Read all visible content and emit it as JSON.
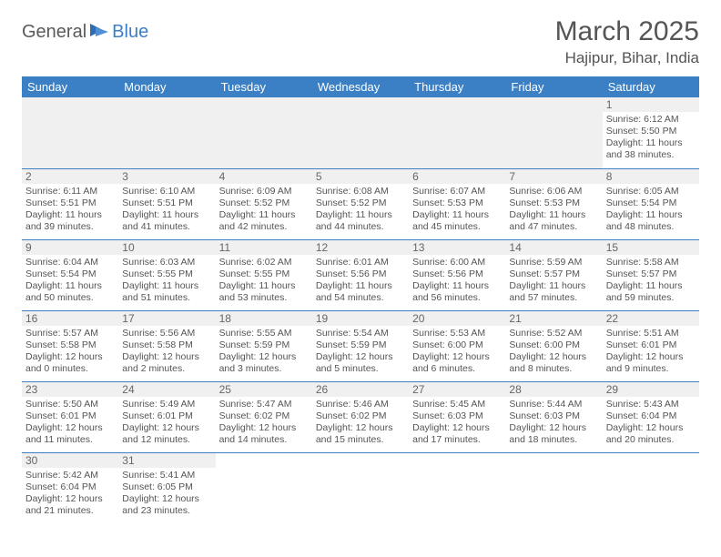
{
  "logo": {
    "general": "General",
    "blue": "Blue"
  },
  "title": "March 2025",
  "location": "Hajipur, Bihar, India",
  "colors": {
    "header_bg": "#3b7fc4",
    "header_fg": "#ffffff",
    "grid_line": "#3b7fc4",
    "daynum_bg": "#f0f0f0",
    "text": "#555555"
  },
  "weekdays": [
    "Sunday",
    "Monday",
    "Tuesday",
    "Wednesday",
    "Thursday",
    "Friday",
    "Saturday"
  ],
  "days": {
    "1": {
      "sunrise": "Sunrise: 6:12 AM",
      "sunset": "Sunset: 5:50 PM",
      "daylight": "Daylight: 11 hours and 38 minutes."
    },
    "2": {
      "sunrise": "Sunrise: 6:11 AM",
      "sunset": "Sunset: 5:51 PM",
      "daylight": "Daylight: 11 hours and 39 minutes."
    },
    "3": {
      "sunrise": "Sunrise: 6:10 AM",
      "sunset": "Sunset: 5:51 PM",
      "daylight": "Daylight: 11 hours and 41 minutes."
    },
    "4": {
      "sunrise": "Sunrise: 6:09 AM",
      "sunset": "Sunset: 5:52 PM",
      "daylight": "Daylight: 11 hours and 42 minutes."
    },
    "5": {
      "sunrise": "Sunrise: 6:08 AM",
      "sunset": "Sunset: 5:52 PM",
      "daylight": "Daylight: 11 hours and 44 minutes."
    },
    "6": {
      "sunrise": "Sunrise: 6:07 AM",
      "sunset": "Sunset: 5:53 PM",
      "daylight": "Daylight: 11 hours and 45 minutes."
    },
    "7": {
      "sunrise": "Sunrise: 6:06 AM",
      "sunset": "Sunset: 5:53 PM",
      "daylight": "Daylight: 11 hours and 47 minutes."
    },
    "8": {
      "sunrise": "Sunrise: 6:05 AM",
      "sunset": "Sunset: 5:54 PM",
      "daylight": "Daylight: 11 hours and 48 minutes."
    },
    "9": {
      "sunrise": "Sunrise: 6:04 AM",
      "sunset": "Sunset: 5:54 PM",
      "daylight": "Daylight: 11 hours and 50 minutes."
    },
    "10": {
      "sunrise": "Sunrise: 6:03 AM",
      "sunset": "Sunset: 5:55 PM",
      "daylight": "Daylight: 11 hours and 51 minutes."
    },
    "11": {
      "sunrise": "Sunrise: 6:02 AM",
      "sunset": "Sunset: 5:55 PM",
      "daylight": "Daylight: 11 hours and 53 minutes."
    },
    "12": {
      "sunrise": "Sunrise: 6:01 AM",
      "sunset": "Sunset: 5:56 PM",
      "daylight": "Daylight: 11 hours and 54 minutes."
    },
    "13": {
      "sunrise": "Sunrise: 6:00 AM",
      "sunset": "Sunset: 5:56 PM",
      "daylight": "Daylight: 11 hours and 56 minutes."
    },
    "14": {
      "sunrise": "Sunrise: 5:59 AM",
      "sunset": "Sunset: 5:57 PM",
      "daylight": "Daylight: 11 hours and 57 minutes."
    },
    "15": {
      "sunrise": "Sunrise: 5:58 AM",
      "sunset": "Sunset: 5:57 PM",
      "daylight": "Daylight: 11 hours and 59 minutes."
    },
    "16": {
      "sunrise": "Sunrise: 5:57 AM",
      "sunset": "Sunset: 5:58 PM",
      "daylight": "Daylight: 12 hours and 0 minutes."
    },
    "17": {
      "sunrise": "Sunrise: 5:56 AM",
      "sunset": "Sunset: 5:58 PM",
      "daylight": "Daylight: 12 hours and 2 minutes."
    },
    "18": {
      "sunrise": "Sunrise: 5:55 AM",
      "sunset": "Sunset: 5:59 PM",
      "daylight": "Daylight: 12 hours and 3 minutes."
    },
    "19": {
      "sunrise": "Sunrise: 5:54 AM",
      "sunset": "Sunset: 5:59 PM",
      "daylight": "Daylight: 12 hours and 5 minutes."
    },
    "20": {
      "sunrise": "Sunrise: 5:53 AM",
      "sunset": "Sunset: 6:00 PM",
      "daylight": "Daylight: 12 hours and 6 minutes."
    },
    "21": {
      "sunrise": "Sunrise: 5:52 AM",
      "sunset": "Sunset: 6:00 PM",
      "daylight": "Daylight: 12 hours and 8 minutes."
    },
    "22": {
      "sunrise": "Sunrise: 5:51 AM",
      "sunset": "Sunset: 6:01 PM",
      "daylight": "Daylight: 12 hours and 9 minutes."
    },
    "23": {
      "sunrise": "Sunrise: 5:50 AM",
      "sunset": "Sunset: 6:01 PM",
      "daylight": "Daylight: 12 hours and 11 minutes."
    },
    "24": {
      "sunrise": "Sunrise: 5:49 AM",
      "sunset": "Sunset: 6:01 PM",
      "daylight": "Daylight: 12 hours and 12 minutes."
    },
    "25": {
      "sunrise": "Sunrise: 5:47 AM",
      "sunset": "Sunset: 6:02 PM",
      "daylight": "Daylight: 12 hours and 14 minutes."
    },
    "26": {
      "sunrise": "Sunrise: 5:46 AM",
      "sunset": "Sunset: 6:02 PM",
      "daylight": "Daylight: 12 hours and 15 minutes."
    },
    "27": {
      "sunrise": "Sunrise: 5:45 AM",
      "sunset": "Sunset: 6:03 PM",
      "daylight": "Daylight: 12 hours and 17 minutes."
    },
    "28": {
      "sunrise": "Sunrise: 5:44 AM",
      "sunset": "Sunset: 6:03 PM",
      "daylight": "Daylight: 12 hours and 18 minutes."
    },
    "29": {
      "sunrise": "Sunrise: 5:43 AM",
      "sunset": "Sunset: 6:04 PM",
      "daylight": "Daylight: 12 hours and 20 minutes."
    },
    "30": {
      "sunrise": "Sunrise: 5:42 AM",
      "sunset": "Sunset: 6:04 PM",
      "daylight": "Daylight: 12 hours and 21 minutes."
    },
    "31": {
      "sunrise": "Sunrise: 5:41 AM",
      "sunset": "Sunset: 6:05 PM",
      "daylight": "Daylight: 12 hours and 23 minutes."
    }
  },
  "layout": {
    "first_weekday_index": 6,
    "num_days": 31
  }
}
